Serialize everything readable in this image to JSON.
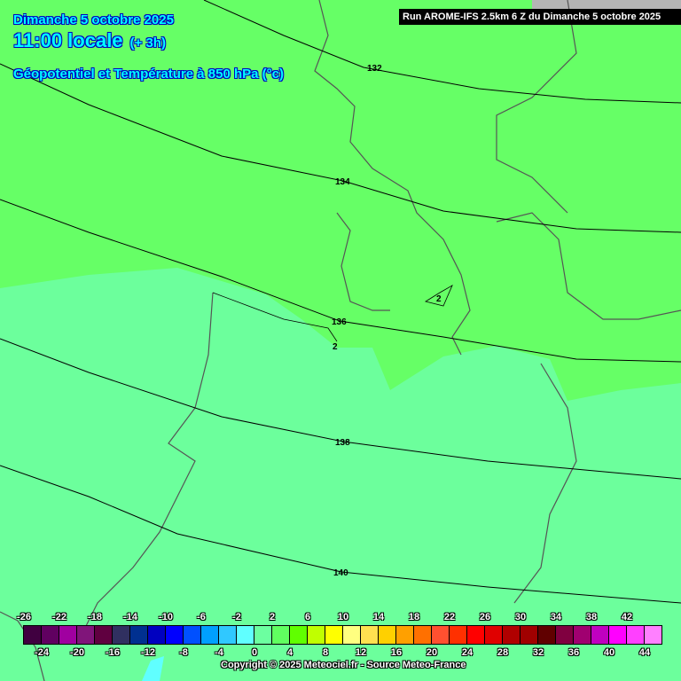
{
  "header": {
    "date": "Dimanche 5 octobre 2025",
    "time": "11:00 locale",
    "offset": "(+ 3h)",
    "parameter": "Géopotentiel et Température à 850 hPa (°c)"
  },
  "run_banner": "Run AROME-IFS 2.5km 6 Z du Dimanche 5 octobre 2025",
  "copyright": "Copyright © 2025 Meteociel.fr - Source Meteo-France",
  "contours": {
    "geopotential_labels": [
      "132",
      "134",
      "136",
      "138",
      "140"
    ],
    "isotherm_labels": [
      "2",
      "2"
    ]
  },
  "colors": {
    "warm_region": "#66ff66",
    "cool_region": "#6cff9c",
    "border": "#555555",
    "contour": "#000000"
  },
  "legend": {
    "top_labels": [
      "-26",
      "-22",
      "-18",
      "-14",
      "-10",
      "-6",
      "-2",
      "2",
      "6",
      "10",
      "14",
      "18",
      "22",
      "26",
      "30",
      "34",
      "38",
      "42"
    ],
    "bottom_labels": [
      "-24",
      "-20",
      "-16",
      "-12",
      "-8",
      "-4",
      "0",
      "4",
      "8",
      "12",
      "16",
      "20",
      "24",
      "28",
      "32",
      "36",
      "40",
      "44"
    ],
    "colors": [
      "#400040",
      "#600060",
      "#a000a0",
      "#80157a",
      "#600040",
      "#303060",
      "#003090",
      "#0000c0",
      "#0000ff",
      "#0050ff",
      "#00a0ff",
      "#30c8ff",
      "#60ffff",
      "#6cffa0",
      "#60ff60",
      "#60ff00",
      "#c0ff00",
      "#ffff00",
      "#ffff80",
      "#ffe050",
      "#ffd000",
      "#ffa000",
      "#ff7000",
      "#ff5030",
      "#ff3000",
      "#ff0000",
      "#e00000",
      "#b00000",
      "#a00000",
      "#600000",
      "#800040",
      "#a00070",
      "#c000c0",
      "#ff00ff",
      "#ff40ff",
      "#ff80ff"
    ]
  }
}
